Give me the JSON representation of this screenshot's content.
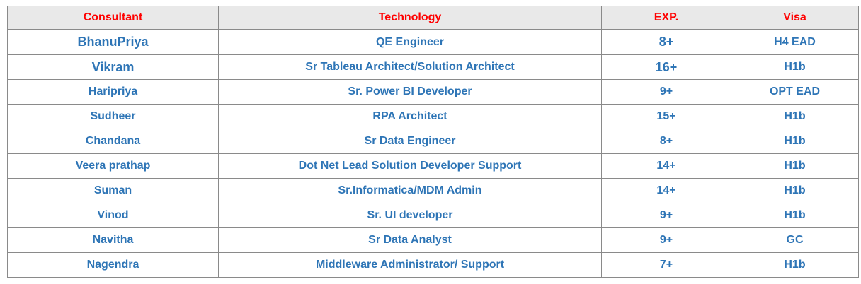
{
  "table": {
    "headers": [
      "Consultant",
      "Technology",
      "EXP.",
      "Visa"
    ],
    "rows": [
      {
        "consultant": "BhanuPriya",
        "technology": "QE Engineer",
        "exp": "8+",
        "visa": "H4 EAD"
      },
      {
        "consultant": "Vikram",
        "technology": "Sr Tableau Architect/Solution Architect",
        "exp": "16+",
        "visa": "H1b"
      },
      {
        "consultant": "Haripriya",
        "technology": "Sr. Power BI  Developer",
        "exp": "9+",
        "visa": "OPT EAD"
      },
      {
        "consultant": "Sudheer",
        "technology": "RPA Architect",
        "exp": "15+",
        "visa": "H1b"
      },
      {
        "consultant": "Chandana",
        "technology": "Sr  Data Engineer",
        "exp": "8+",
        "visa": "H1b"
      },
      {
        "consultant": "Veera prathap",
        "technology": "Dot Net Lead Solution Developer Support",
        "exp": "14+",
        "visa": "H1b"
      },
      {
        "consultant": "Suman",
        "technology": "Sr.Informatica/MDM Admin",
        "exp": "14+",
        "visa": "H1b"
      },
      {
        "consultant": "Vinod",
        "technology": "Sr. UI developer",
        "exp": "9+",
        "visa": "H1b"
      },
      {
        "consultant": "Navitha",
        "technology": "Sr Data Analyst",
        "exp": "9+",
        "visa": "GC"
      },
      {
        "consultant": "Nagendra",
        "technology": "Middleware Administrator/ Support",
        "exp": "7+",
        "visa": "H1b"
      }
    ]
  },
  "colors": {
    "header_text": "#ff0000",
    "header_bg": "#e9e9e9",
    "cell_text": "#2e75b6",
    "border": "#8a8a8a"
  }
}
